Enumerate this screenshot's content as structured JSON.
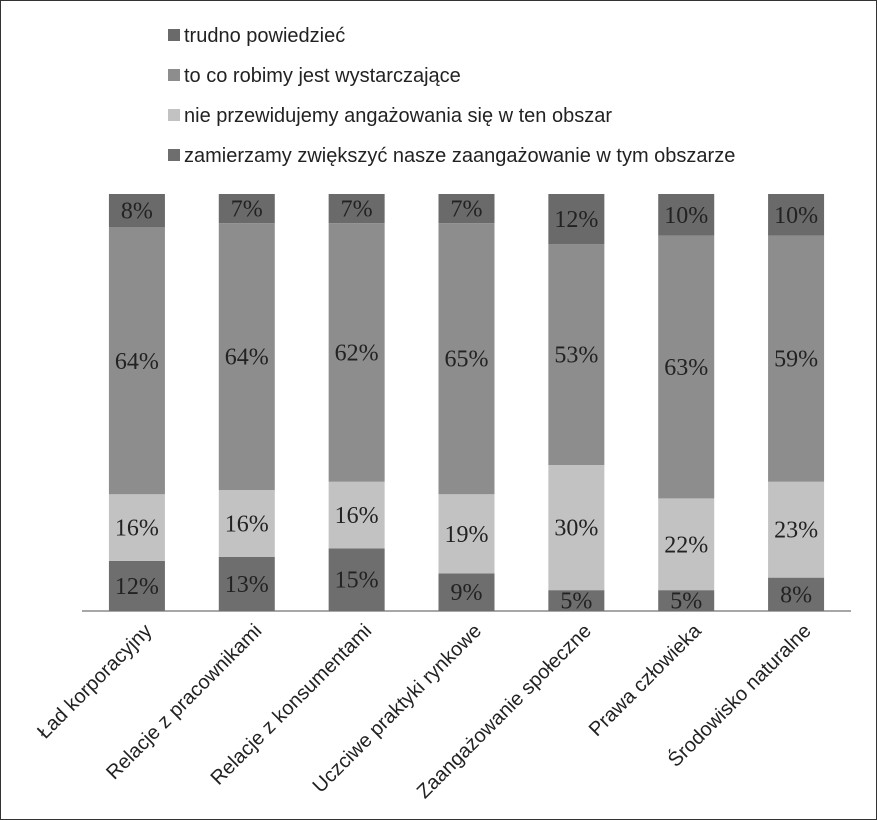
{
  "chart_data": {
    "type": "bar",
    "stacked": true,
    "categories": [
      "Ład korporacyjny",
      "Relacje z pracownikami",
      "Relacje z konsumentami",
      "Uczciwe praktyki rynkowe",
      "Zaangażowanie społeczne",
      "Prawa człowieka",
      "Środowisko naturalne"
    ],
    "series": [
      {
        "name": "zamierzamy zwiększyć nasze zaangażowanie w tym obszarze",
        "values": [
          12,
          13,
          15,
          9,
          5,
          5,
          8
        ],
        "labels": [
          "12%",
          "13%",
          "15%",
          "9%",
          "5%",
          "5%",
          "8%"
        ],
        "color": "#6e6e6e"
      },
      {
        "name": "nie przewidujemy angażowania się w ten obszar",
        "values": [
          16,
          16,
          16,
          19,
          30,
          22,
          23
        ],
        "labels": [
          "16%",
          "16%",
          "16%",
          "19%",
          "30%",
          "22%",
          "23%"
        ],
        "color": "#c2c2c2"
      },
      {
        "name": "to co robimy jest wystarczające",
        "values": [
          64,
          64,
          62,
          65,
          53,
          63,
          59
        ],
        "labels": [
          "64%",
          "64%",
          "62%",
          "65%",
          "53%",
          "63%",
          "59%"
        ],
        "color": "#8d8d8d"
      },
      {
        "name": "trudno powiedzieć",
        "values": [
          8,
          7,
          7,
          7,
          12,
          10,
          10
        ],
        "labels": [
          "8%",
          "7%",
          "7%",
          "7%",
          "12%",
          "10%",
          "10%"
        ],
        "color": "#6a6a6a"
      }
    ],
    "legend_order": [
      3,
      2,
      1,
      0
    ],
    "legend_position": "top",
    "ylim": [
      0,
      100
    ],
    "grid": false
  }
}
